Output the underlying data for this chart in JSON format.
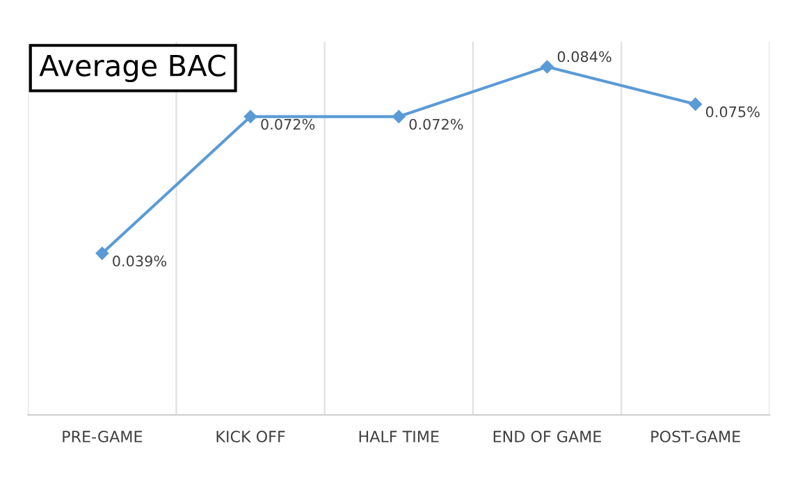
{
  "chart_data": {
    "type": "line",
    "title": "Average BAC",
    "categories": [
      "PRE-GAME",
      "KICK OFF",
      "HALF TIME",
      "END OF GAME",
      "POST-GAME"
    ],
    "series": [
      {
        "color": "#5b9bd5",
        "values": [
          0.039,
          0.072,
          0.072,
          0.084,
          0.075
        ],
        "value_labels": [
          "0.039%",
          "0.072%",
          "0.072%",
          "0.084%",
          "0.075%"
        ]
      }
    ],
    "ylim": [
      0,
      0.09
    ],
    "tick_labels": "x",
    "grid": "x",
    "legend": false,
    "marker": "diamond",
    "line_style": "solid"
  }
}
